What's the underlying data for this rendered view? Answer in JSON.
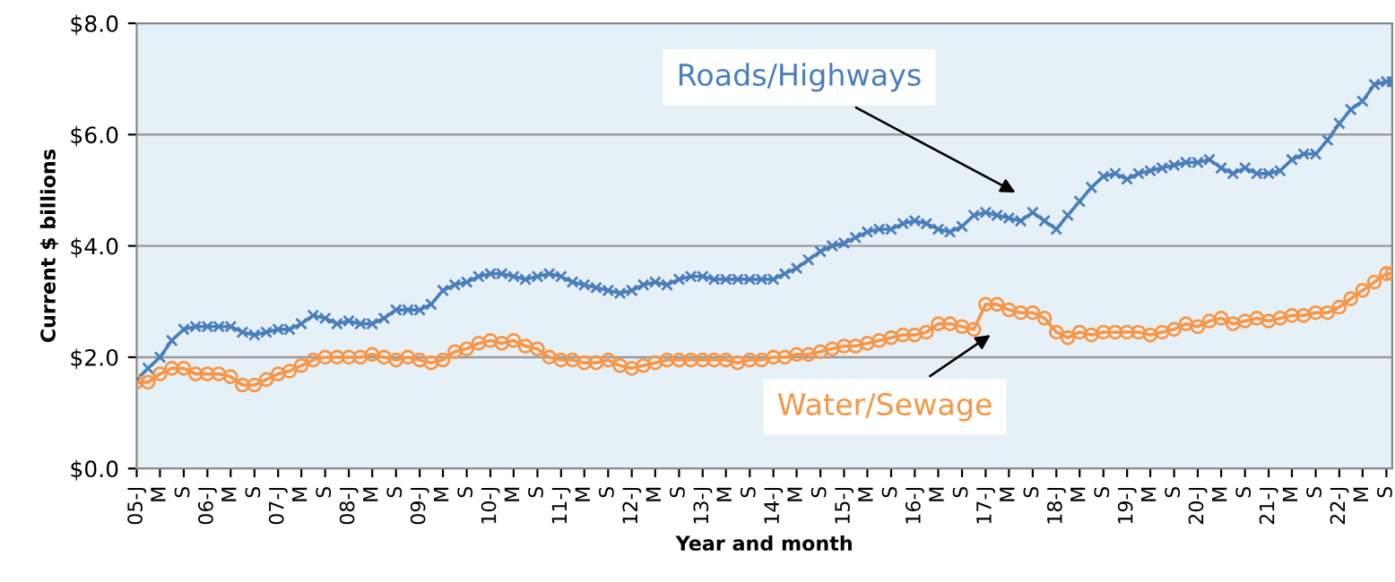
{
  "chart_data": {
    "type": "line",
    "xlabel": "Year and month",
    "ylabel": "Current $ billions",
    "xlim": [
      "2005-01",
      "2022-10"
    ],
    "xticks": [
      {
        "value": "2005-01",
        "label": "05-J"
      },
      {
        "value": "2005-05",
        "label": "M"
      },
      {
        "value": "2005-09",
        "label": "S"
      },
      {
        "value": "2006-01",
        "label": "06-J"
      },
      {
        "value": "2006-05",
        "label": "M"
      },
      {
        "value": "2006-09",
        "label": "S"
      },
      {
        "value": "2007-01",
        "label": "07-J"
      },
      {
        "value": "2007-05",
        "label": "M"
      },
      {
        "value": "2007-09",
        "label": "S"
      },
      {
        "value": "2008-01",
        "label": "08-J"
      },
      {
        "value": "2008-05",
        "label": "M"
      },
      {
        "value": "2008-09",
        "label": "S"
      },
      {
        "value": "2009-01",
        "label": "09-J"
      },
      {
        "value": "2009-05",
        "label": "M"
      },
      {
        "value": "2009-09",
        "label": "S"
      },
      {
        "value": "2010-01",
        "label": "10-J"
      },
      {
        "value": "2010-05",
        "label": "M"
      },
      {
        "value": "2010-09",
        "label": "S"
      },
      {
        "value": "2011-01",
        "label": "11-J"
      },
      {
        "value": "2011-05",
        "label": "M"
      },
      {
        "value": "2011-09",
        "label": "S"
      },
      {
        "value": "2012-01",
        "label": "12-J"
      },
      {
        "value": "2012-05",
        "label": "M"
      },
      {
        "value": "2012-09",
        "label": "S"
      },
      {
        "value": "2013-01",
        "label": "13-J"
      },
      {
        "value": "2013-05",
        "label": "M"
      },
      {
        "value": "2013-09",
        "label": "S"
      },
      {
        "value": "2014-01",
        "label": "14-J"
      },
      {
        "value": "2014-05",
        "label": "M"
      },
      {
        "value": "2014-09",
        "label": "S"
      },
      {
        "value": "2015-01",
        "label": "15-J"
      },
      {
        "value": "2015-05",
        "label": "M"
      },
      {
        "value": "2015-09",
        "label": "S"
      },
      {
        "value": "2016-01",
        "label": "16-J"
      },
      {
        "value": "2016-05",
        "label": "M"
      },
      {
        "value": "2016-09",
        "label": "S"
      },
      {
        "value": "2017-01",
        "label": "17-J"
      },
      {
        "value": "2017-05",
        "label": "M"
      },
      {
        "value": "2017-09",
        "label": "S"
      },
      {
        "value": "2018-01",
        "label": "18-J"
      },
      {
        "value": "2018-05",
        "label": "M"
      },
      {
        "value": "2018-09",
        "label": "S"
      },
      {
        "value": "2019-01",
        "label": "19-J"
      },
      {
        "value": "2019-05",
        "label": "M"
      },
      {
        "value": "2019-09",
        "label": "S"
      },
      {
        "value": "2020-01",
        "label": "20-J"
      },
      {
        "value": "2020-05",
        "label": "M"
      },
      {
        "value": "2020-09",
        "label": "S"
      },
      {
        "value": "2021-01",
        "label": "21-J"
      },
      {
        "value": "2021-05",
        "label": "M"
      },
      {
        "value": "2021-09",
        "label": "S"
      },
      {
        "value": "2022-01",
        "label": "22-J"
      },
      {
        "value": "2022-05",
        "label": "M"
      },
      {
        "value": "2022-09",
        "label": "S"
      }
    ],
    "ylim": [
      0,
      8
    ],
    "yticks": [
      {
        "value": 0,
        "label": "$0.0"
      },
      {
        "value": 2,
        "label": "$2.0"
      },
      {
        "value": 4,
        "label": "$4.0"
      },
      {
        "value": 6,
        "label": "$6.0"
      },
      {
        "value": 8,
        "label": "$8.0"
      }
    ],
    "grid": "y",
    "legend": false,
    "x": [
      "2005-01",
      "2005-03",
      "2005-05",
      "2005-07",
      "2005-09",
      "2005-11",
      "2006-01",
      "2006-03",
      "2006-05",
      "2006-07",
      "2006-09",
      "2006-11",
      "2007-01",
      "2007-03",
      "2007-05",
      "2007-07",
      "2007-09",
      "2007-11",
      "2008-01",
      "2008-03",
      "2008-05",
      "2008-07",
      "2008-09",
      "2008-11",
      "2009-01",
      "2009-03",
      "2009-05",
      "2009-07",
      "2009-09",
      "2009-11",
      "2010-01",
      "2010-03",
      "2010-05",
      "2010-07",
      "2010-09",
      "2010-11",
      "2011-01",
      "2011-03",
      "2011-05",
      "2011-07",
      "2011-09",
      "2011-11",
      "2012-01",
      "2012-03",
      "2012-05",
      "2012-07",
      "2012-09",
      "2012-11",
      "2013-01",
      "2013-03",
      "2013-05",
      "2013-07",
      "2013-09",
      "2013-11",
      "2014-01",
      "2014-03",
      "2014-05",
      "2014-07",
      "2014-09",
      "2014-11",
      "2015-01",
      "2015-03",
      "2015-05",
      "2015-07",
      "2015-09",
      "2015-11",
      "2016-01",
      "2016-03",
      "2016-05",
      "2016-07",
      "2016-09",
      "2016-11",
      "2017-01",
      "2017-03",
      "2017-05",
      "2017-07",
      "2017-09",
      "2017-11",
      "2018-01",
      "2018-03",
      "2018-05",
      "2018-07",
      "2018-09",
      "2018-11",
      "2019-01",
      "2019-03",
      "2019-05",
      "2019-07",
      "2019-09",
      "2019-11",
      "2020-01",
      "2020-03",
      "2020-05",
      "2020-07",
      "2020-09",
      "2020-11",
      "2021-01",
      "2021-03",
      "2021-05",
      "2021-07",
      "2021-09",
      "2021-11",
      "2022-01",
      "2022-03",
      "2022-05",
      "2022-07",
      "2022-09",
      "2022-10"
    ],
    "series": [
      {
        "name": "Roads/Highways",
        "color": "#4a7ebb",
        "marker": "cross",
        "values": [
          1.6,
          1.8,
          2.0,
          2.3,
          2.5,
          2.55,
          2.55,
          2.55,
          2.55,
          2.45,
          2.4,
          2.45,
          2.5,
          2.5,
          2.6,
          2.75,
          2.7,
          2.6,
          2.65,
          2.6,
          2.6,
          2.7,
          2.85,
          2.85,
          2.85,
          2.95,
          3.2,
          3.3,
          3.35,
          3.45,
          3.5,
          3.5,
          3.45,
          3.4,
          3.45,
          3.5,
          3.45,
          3.35,
          3.3,
          3.25,
          3.2,
          3.15,
          3.2,
          3.3,
          3.35,
          3.3,
          3.4,
          3.45,
          3.45,
          3.4,
          3.4,
          3.4,
          3.4,
          3.4,
          3.4,
          3.5,
          3.6,
          3.75,
          3.9,
          4.0,
          4.05,
          4.15,
          4.25,
          4.3,
          4.3,
          4.4,
          4.45,
          4.4,
          4.3,
          4.25,
          4.35,
          4.55,
          4.6,
          4.55,
          4.5,
          4.45,
          4.6,
          4.45,
          4.3,
          4.55,
          4.8,
          5.05,
          5.25,
          5.3,
          5.2,
          5.3,
          5.35,
          5.4,
          5.45,
          5.5,
          5.5,
          5.55,
          5.4,
          5.3,
          5.4,
          5.3,
          5.3,
          5.35,
          5.55,
          5.65,
          5.65,
          5.9,
          6.2,
          6.45,
          6.6,
          6.9,
          6.95,
          6.95
        ]
      },
      {
        "name": "Water/Sewage",
        "color": "#f79646",
        "marker": "circle",
        "values": [
          1.55,
          1.55,
          1.7,
          1.8,
          1.8,
          1.7,
          1.7,
          1.7,
          1.65,
          1.5,
          1.5,
          1.6,
          1.7,
          1.75,
          1.85,
          1.95,
          2.0,
          2.0,
          2.0,
          2.0,
          2.05,
          2.0,
          1.95,
          2.0,
          1.95,
          1.9,
          1.95,
          2.1,
          2.15,
          2.25,
          2.3,
          2.25,
          2.3,
          2.2,
          2.15,
          2.0,
          1.95,
          1.95,
          1.9,
          1.9,
          1.95,
          1.85,
          1.8,
          1.85,
          1.9,
          1.95,
          1.95,
          1.95,
          1.95,
          1.95,
          1.95,
          1.9,
          1.95,
          1.95,
          2.0,
          2.0,
          2.05,
          2.05,
          2.1,
          2.15,
          2.2,
          2.2,
          2.25,
          2.3,
          2.35,
          2.4,
          2.4,
          2.45,
          2.6,
          2.6,
          2.55,
          2.5,
          2.95,
          2.95,
          2.85,
          2.8,
          2.8,
          2.7,
          2.45,
          2.35,
          2.45,
          2.4,
          2.45,
          2.45,
          2.45,
          2.45,
          2.4,
          2.45,
          2.5,
          2.6,
          2.55,
          2.65,
          2.7,
          2.6,
          2.65,
          2.7,
          2.65,
          2.7,
          2.75,
          2.75,
          2.8,
          2.8,
          2.9,
          3.05,
          3.2,
          3.35,
          3.5,
          3.5
        ]
      }
    ]
  }
}
